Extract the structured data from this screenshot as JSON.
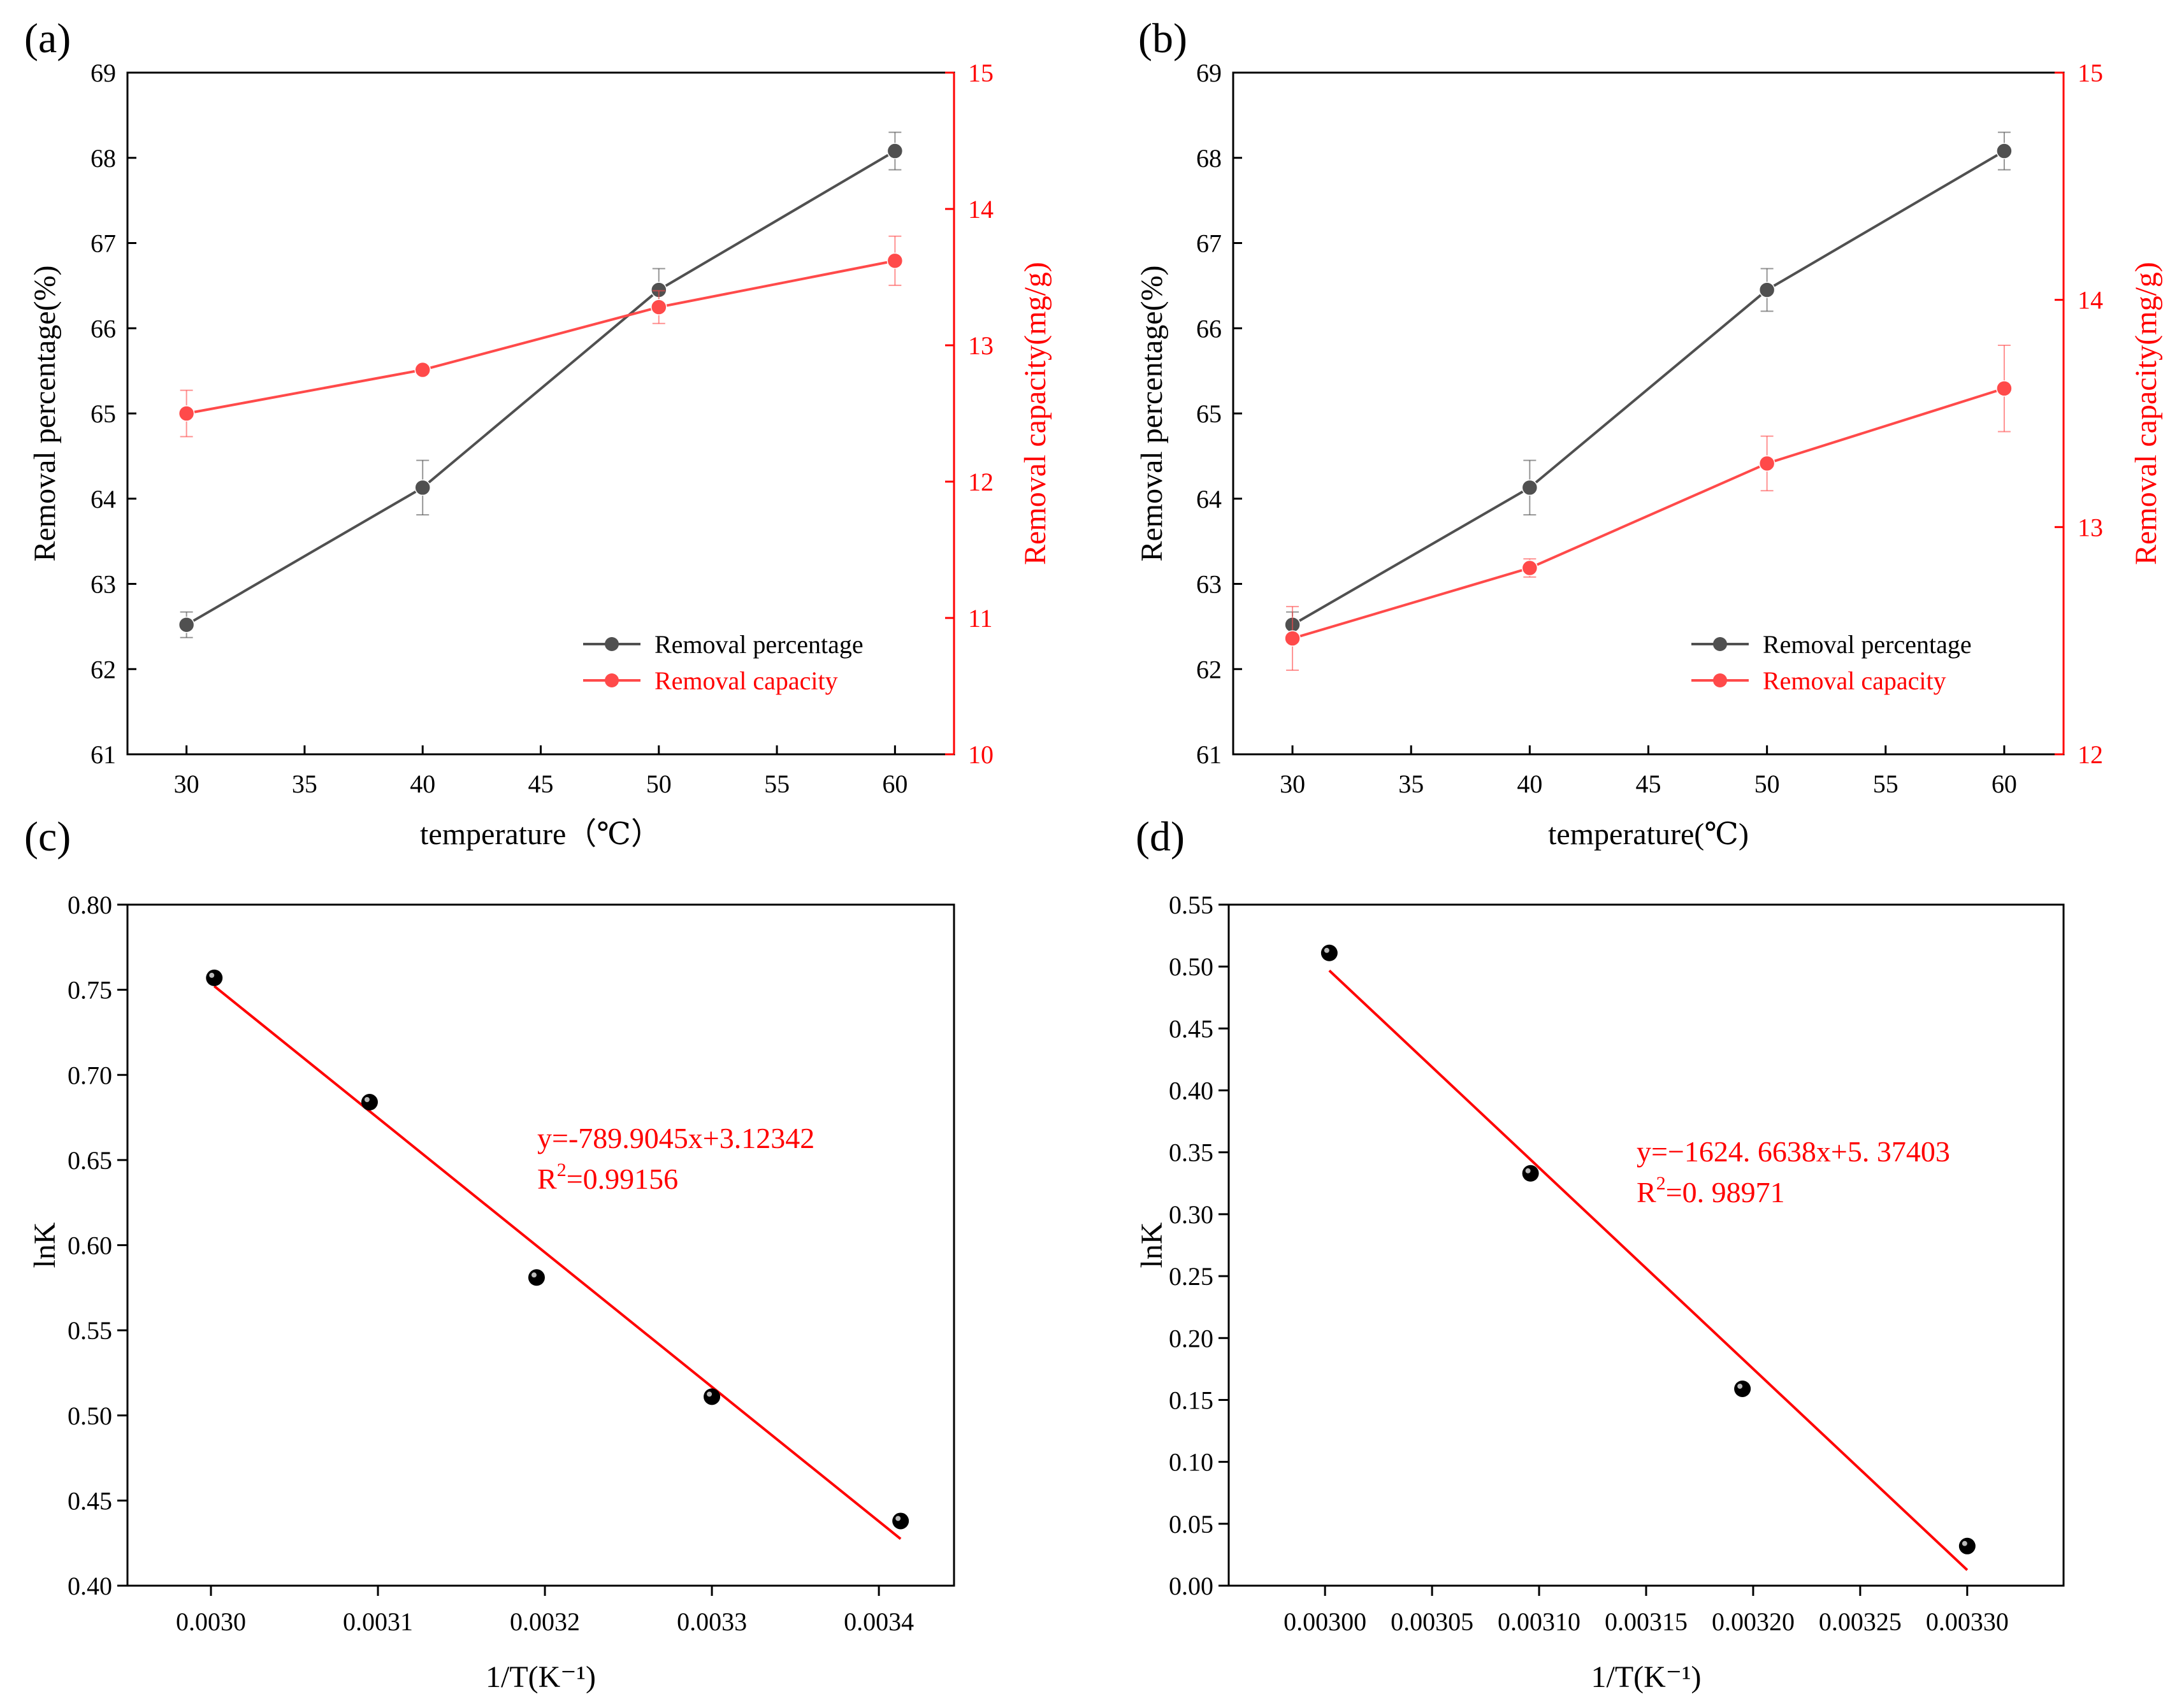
{
  "chart_data": [
    {
      "id": "a",
      "type": "line",
      "panel_label": "(a)",
      "xlabel": "temperature（℃）",
      "ylabel": "Removal percentage(%)",
      "y2label": "Removal capacity(mg/g)",
      "xlim": [
        27.5,
        62.5
      ],
      "ylim": [
        61,
        69
      ],
      "y2lim": [
        10,
        15
      ],
      "x_ticks": [
        "30",
        "35",
        "40",
        "45",
        "50",
        "55",
        "60"
      ],
      "y_ticks": [
        "61",
        "62",
        "63",
        "64",
        "65",
        "66",
        "67",
        "68",
        "69"
      ],
      "y2_ticks": [
        "10",
        "11",
        "12",
        "13",
        "14",
        "15"
      ],
      "legend": [
        "Removal percentage",
        "Removal capacity"
      ],
      "series": [
        {
          "name": "Removal percentage",
          "axis": "left",
          "color": "#505050",
          "x": [
            30,
            40,
            50,
            60
          ],
          "values": [
            62.52,
            64.13,
            66.45,
            68.08
          ],
          "err": [
            0.15,
            0.32,
            0.25,
            0.22
          ]
        },
        {
          "name": "Removal capacity",
          "axis": "right",
          "color": "#ff4a4a",
          "x": [
            30,
            40,
            50,
            60
          ],
          "values": [
            12.5,
            12.82,
            13.28,
            13.62
          ],
          "err": [
            0.17,
            0.03,
            0.12,
            0.18
          ]
        }
      ]
    },
    {
      "id": "b",
      "type": "line",
      "panel_label": "(b)",
      "xlabel": "temperature(℃)",
      "ylabel": "Removal percentage(%)",
      "y2label": "Removal capacity(mg/g)",
      "xlim": [
        27.5,
        62.5
      ],
      "ylim": [
        61,
        69
      ],
      "y2lim": [
        12,
        15
      ],
      "x_ticks": [
        "30",
        "35",
        "40",
        "45",
        "50",
        "55",
        "60"
      ],
      "y_ticks": [
        "61",
        "62",
        "63",
        "64",
        "65",
        "66",
        "67",
        "68",
        "69"
      ],
      "y2_ticks": [
        "12",
        "13",
        "14",
        "15"
      ],
      "legend": [
        "Removal percentage",
        "Removal capacity"
      ],
      "series": [
        {
          "name": "Removal percentage",
          "axis": "left",
          "color": "#505050",
          "x": [
            30,
            40,
            50,
            60
          ],
          "values": [
            62.52,
            64.13,
            66.45,
            68.08
          ],
          "err": [
            0.15,
            0.32,
            0.25,
            0.22
          ]
        },
        {
          "name": "Removal capacity",
          "axis": "right",
          "color": "#ff4a4a",
          "x": [
            30,
            40,
            50,
            60
          ],
          "values": [
            12.51,
            12.82,
            13.28,
            13.61
          ],
          "err": [
            0.14,
            0.04,
            0.12,
            0.19
          ]
        }
      ]
    },
    {
      "id": "c",
      "type": "scatter",
      "panel_label": "(c)",
      "xlabel": "1/T(K⁻¹)",
      "ylabel": "lnK",
      "xlim": [
        0.00295,
        0.003445
      ],
      "ylim": [
        0.4,
        0.8
      ],
      "x_ticks": [
        "0.0030",
        "0.0031",
        "0.0032",
        "0.0033",
        "0.0034"
      ],
      "y_ticks": [
        "0.40",
        "0.45",
        "0.50",
        "0.55",
        "0.60",
        "0.65",
        "0.70",
        "0.75",
        "0.80"
      ],
      "points": {
        "x": [
          0.003002,
          0.003095,
          0.003195,
          0.0033,
          0.003413
        ],
        "y": [
          0.757,
          0.684,
          0.581,
          0.511,
          0.438
        ]
      },
      "fit": {
        "slope": -789.9045,
        "intercept": 3.12342,
        "x_range": [
          0.003002,
          0.003413
        ]
      },
      "equation": "y=-789.9045x+3.12342",
      "r2_prefix": "R",
      "r2_sup": "2",
      "r2_value": "=0.99156"
    },
    {
      "id": "d",
      "type": "scatter",
      "panel_label": "(d)",
      "xlabel": "1/T(K⁻¹)",
      "ylabel": "lnK",
      "xlim": [
        0.002955,
        0.003345
      ],
      "ylim": [
        0.0,
        0.55
      ],
      "x_ticks": [
        "0.00300",
        "0.00305",
        "0.00310",
        "0.00315",
        "0.00320",
        "0.00325",
        "0.00330"
      ],
      "y_ticks": [
        "0.00",
        "0.05",
        "0.10",
        "0.15",
        "0.20",
        "0.25",
        "0.30",
        "0.35",
        "0.40",
        "0.45",
        "0.50",
        "0.55"
      ],
      "points": {
        "x": [
          0.003002,
          0.003096,
          0.003195,
          0.0033
        ],
        "y": [
          0.511,
          0.333,
          0.159,
          0.032
        ]
      },
      "fit": {
        "slope": -1624.6638,
        "intercept": 5.37403,
        "x_range": [
          0.003002,
          0.0033
        ]
      },
      "equation": "y=−1624. 6638x+5. 37403",
      "r2_prefix": "R",
      "r2_sup": "2",
      "r2_value": "=0. 98971"
    }
  ]
}
